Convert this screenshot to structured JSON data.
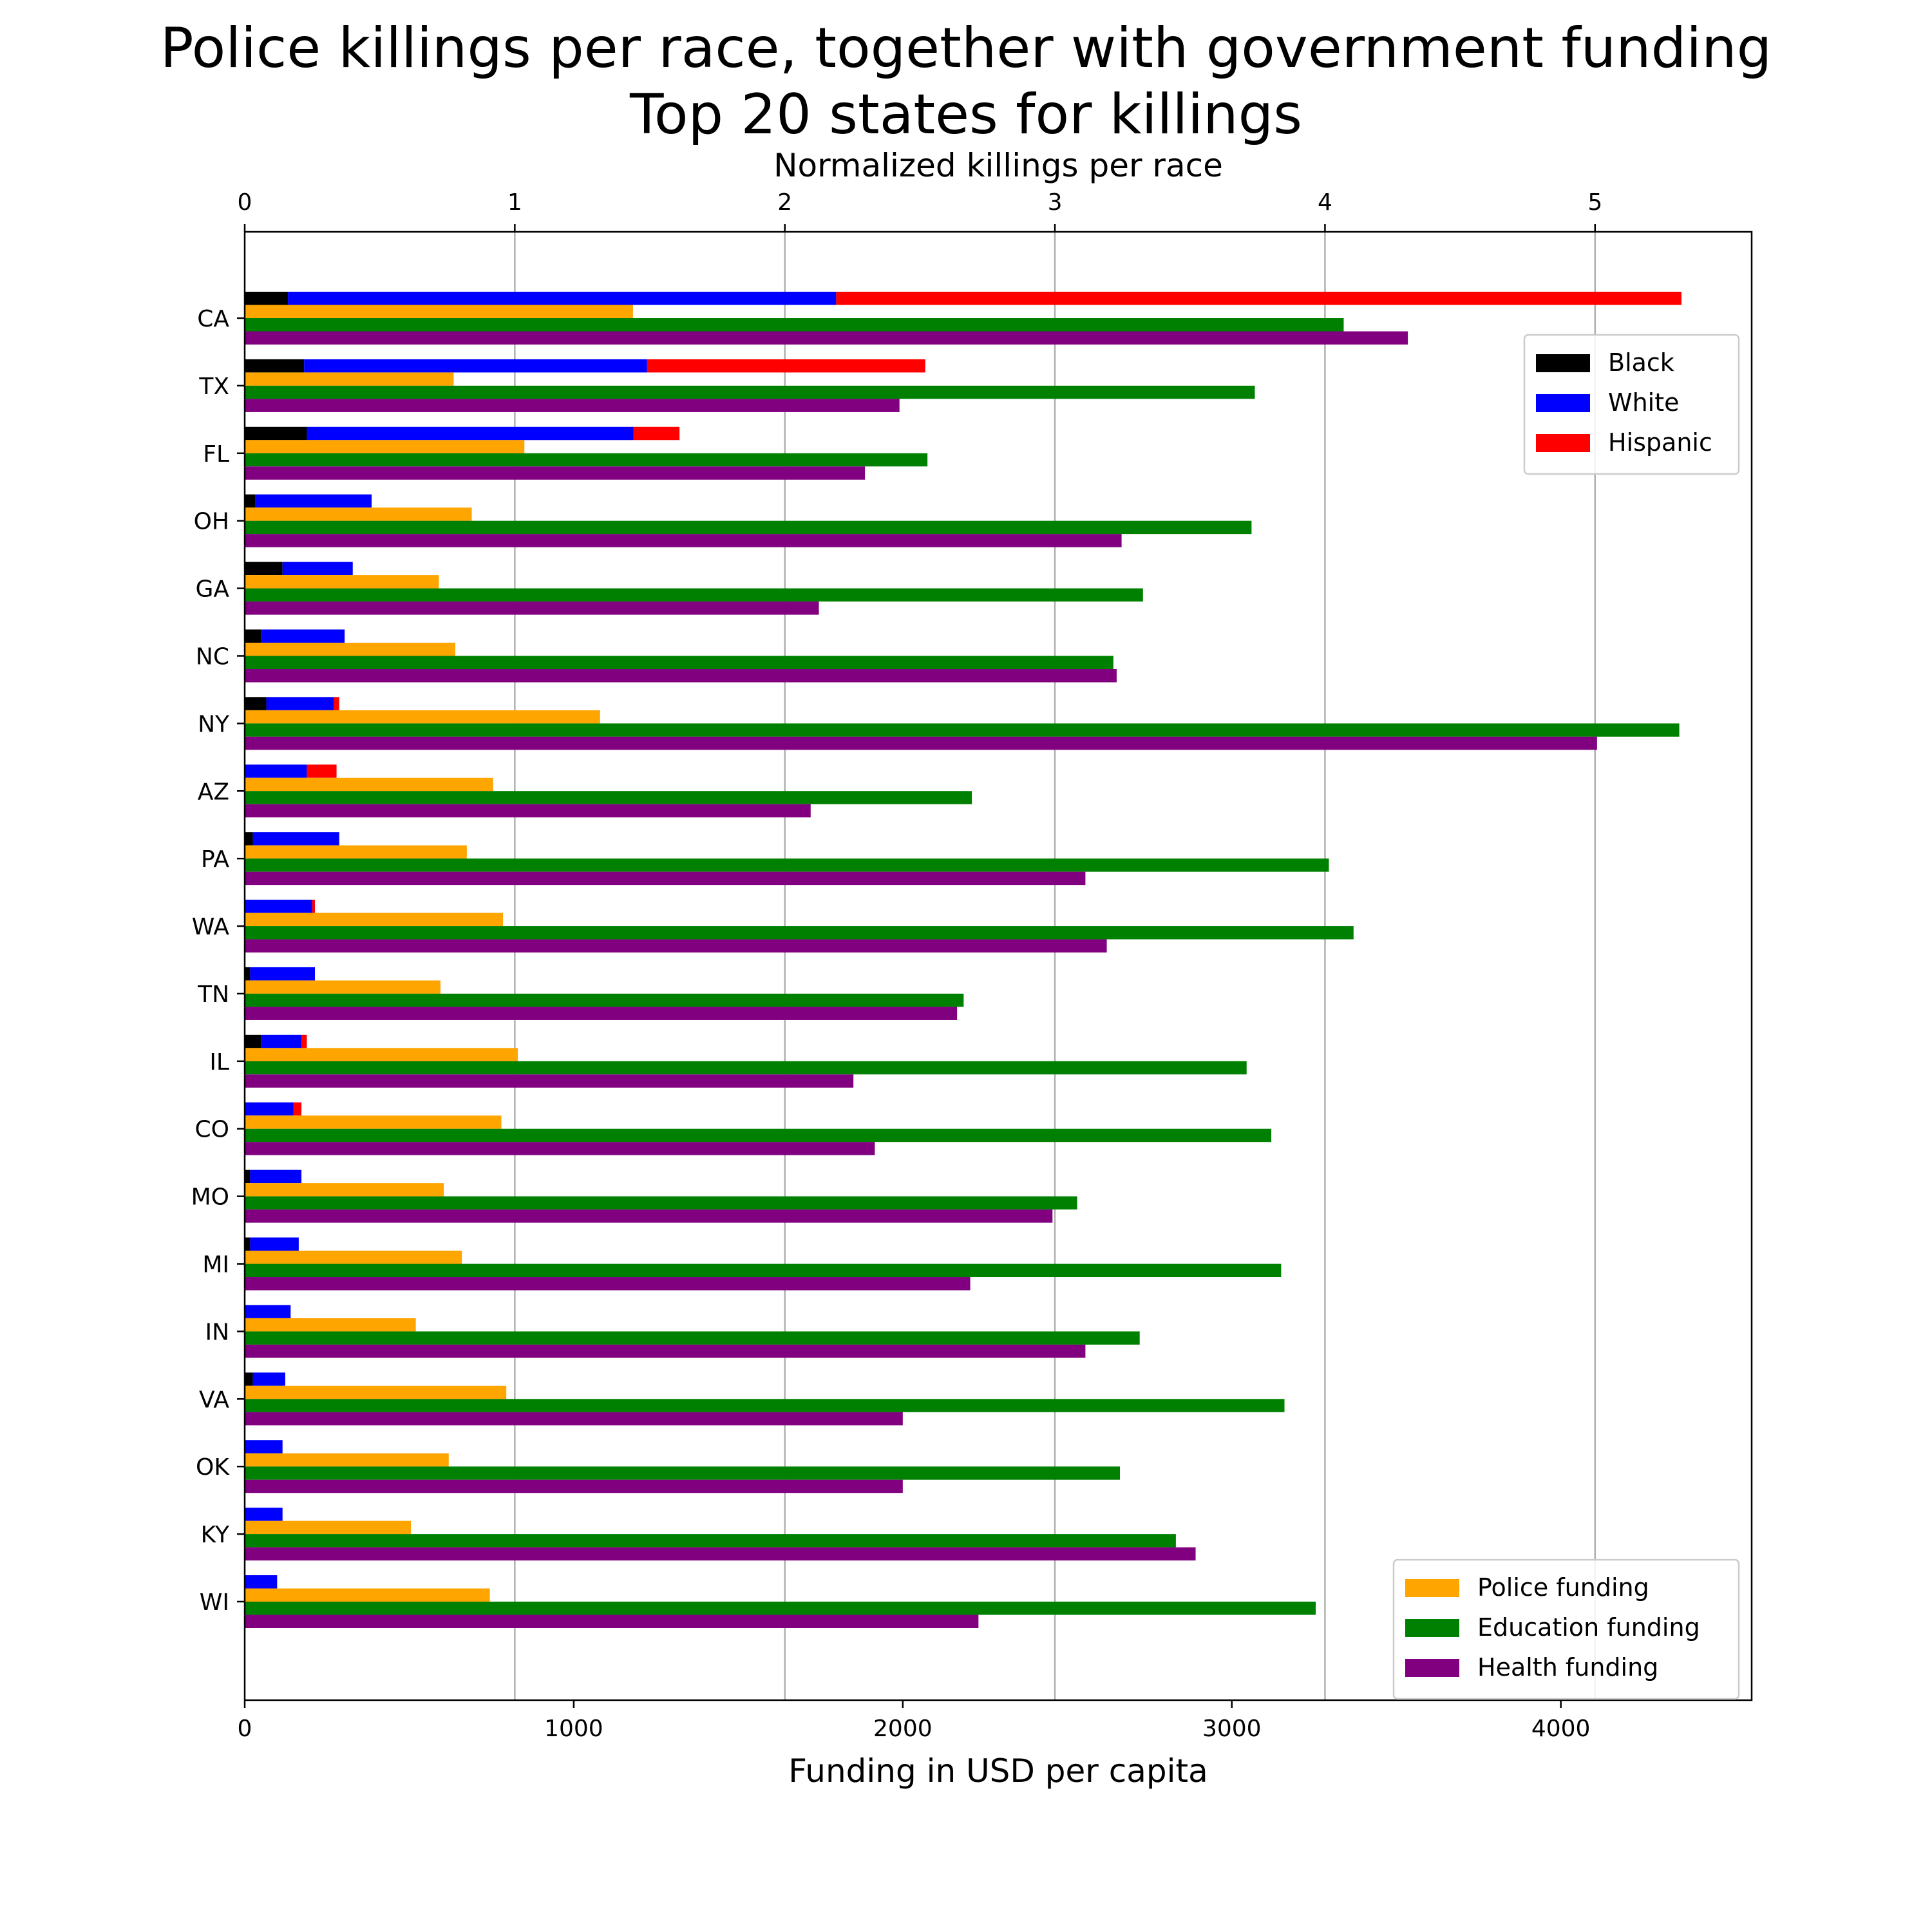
{
  "chart_data": {
    "type": "bar",
    "title": "Police killings per race, together with government funding",
    "subtitle": "Top 20 states for killings",
    "xlabel": "Funding in USD per capita",
    "x2label": "Normalized killings per race",
    "xlim": [
      0,
      4580
    ],
    "x2lim": [
      0,
      5.58
    ],
    "xticks": [
      0,
      1000,
      2000,
      3000,
      4000
    ],
    "x2ticks": [
      0,
      1,
      2,
      3,
      4,
      5
    ],
    "grid": "vertical lines at top-axis ticks",
    "categories": [
      "CA",
      "TX",
      "FL",
      "OH",
      "GA",
      "NC",
      "NY",
      "AZ",
      "PA",
      "WA",
      "TN",
      "IL",
      "CO",
      "MO",
      "MI",
      "IN",
      "VA",
      "OK",
      "KY",
      "WI"
    ],
    "killing_series": [
      {
        "name": "Black",
        "color": "#000000",
        "values": [
          0.16,
          0.22,
          0.23,
          0.04,
          0.14,
          0.06,
          0.08,
          0.0,
          0.03,
          0.0,
          0.02,
          0.06,
          0.0,
          0.02,
          0.02,
          0.0,
          0.03,
          0.0,
          0.0,
          0.0
        ]
      },
      {
        "name": "White",
        "color": "#0000ff",
        "values": [
          2.03,
          1.27,
          1.21,
          0.43,
          0.26,
          0.31,
          0.25,
          0.23,
          0.32,
          0.25,
          0.24,
          0.15,
          0.18,
          0.19,
          0.18,
          0.17,
          0.12,
          0.14,
          0.14,
          0.12
        ]
      },
      {
        "name": "Hispanic",
        "color": "#ff0000",
        "values": [
          3.13,
          1.03,
          0.17,
          0.0,
          0.0,
          0.0,
          0.02,
          0.11,
          0.0,
          0.01,
          0.0,
          0.02,
          0.03,
          0.0,
          0.0,
          0.0,
          0.0,
          0.0,
          0.0,
          0.0
        ]
      }
    ],
    "funding_series": [
      {
        "name": "Police funding",
        "color": "#ffa500",
        "values": [
          1180,
          635,
          850,
          690,
          590,
          640,
          1080,
          755,
          675,
          785,
          595,
          830,
          780,
          605,
          660,
          520,
          795,
          620,
          505,
          745
        ]
      },
      {
        "name": "Education funding",
        "color": "#008000",
        "values": [
          3340,
          3070,
          2075,
          3060,
          2730,
          2640,
          4360,
          2210,
          3295,
          3370,
          2185,
          3045,
          3120,
          2530,
          3150,
          2720,
          3160,
          2660,
          2830,
          3255
        ]
      },
      {
        "name": "Health funding",
        "color": "#800080",
        "values": [
          3535,
          1990,
          1885,
          2665,
          1745,
          2650,
          4110,
          1720,
          2555,
          2620,
          2165,
          1850,
          1915,
          2455,
          2205,
          2555,
          2000,
          2000,
          2890,
          2230
        ]
      }
    ],
    "legend_position_killings": "upper right",
    "legend_position_funding": "lower right"
  }
}
